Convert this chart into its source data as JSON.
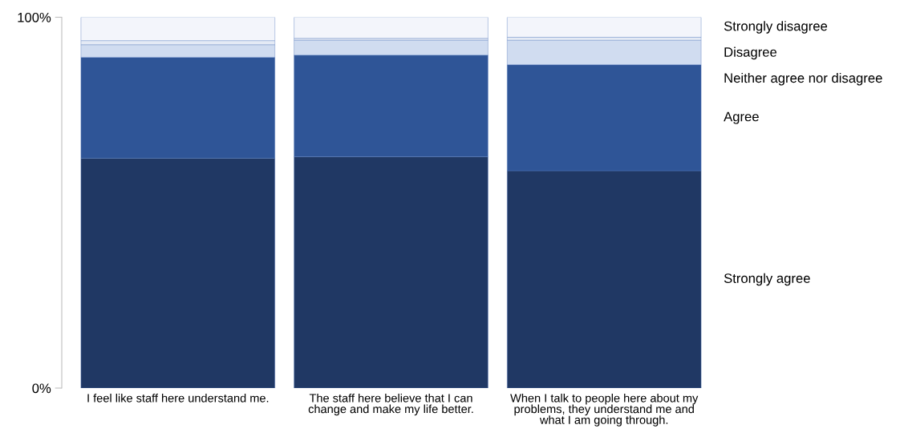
{
  "chart_data": {
    "type": "bar",
    "stacked": true,
    "categories": [
      "I feel like staff here understand me.",
      "The staff here believe that I can change and make my life better.",
      "When I talk to people here about my problems, they understand me and what I am going through."
    ],
    "series": [
      {
        "name": "Strongly agree",
        "color": "#203864",
        "values": [
          62.0,
          62.4,
          58.6
        ]
      },
      {
        "name": "Agree",
        "color": "#2f5597",
        "values": [
          27.2,
          27.4,
          28.6
        ]
      },
      {
        "name": "Neither agree nor disagree",
        "color": "#d0dcf0",
        "values": [
          3.4,
          4.0,
          6.6
        ]
      },
      {
        "name": "Disagree",
        "color": "#e4eaf5",
        "values": [
          1.1,
          0.5,
          0.8
        ]
      },
      {
        "name": "Strongly disagree",
        "color": "#f3f5fb",
        "values": [
          6.3,
          5.7,
          5.4
        ]
      }
    ],
    "ylim": [
      0,
      100
    ],
    "yticks": [
      {
        "value": 0,
        "label": "0%"
      },
      {
        "value": 100,
        "label": "100%"
      }
    ],
    "grid": false
  }
}
